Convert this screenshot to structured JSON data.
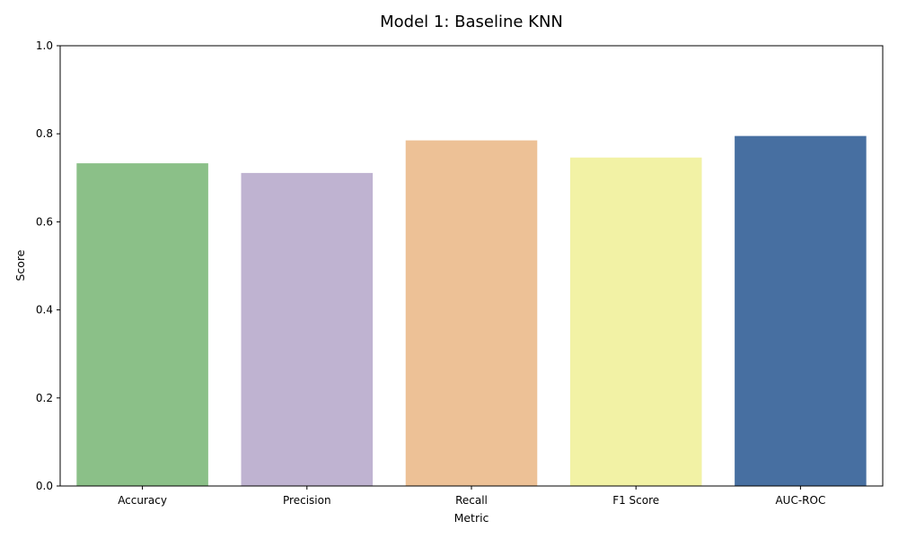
{
  "chart_data": {
    "type": "bar",
    "title": "Model 1: Baseline KNN",
    "xlabel": "Metric",
    "ylabel": "Score",
    "ylim": [
      0,
      1.0
    ],
    "yticks": [
      0.0,
      0.2,
      0.4,
      0.6,
      0.8,
      1.0
    ],
    "ytick_labels": [
      "0.0",
      "0.2",
      "0.4",
      "0.6",
      "0.8",
      "1.0"
    ],
    "categories": [
      "Accuracy",
      "Precision",
      "Recall",
      "F1 Score",
      "AUC-ROC"
    ],
    "values": [
      0.733,
      0.711,
      0.785,
      0.746,
      0.795
    ],
    "colors": [
      "#8bc088",
      "#bfb3d1",
      "#edc196",
      "#f2f2a5",
      "#476fa1"
    ],
    "grid": false,
    "legend": "none"
  }
}
